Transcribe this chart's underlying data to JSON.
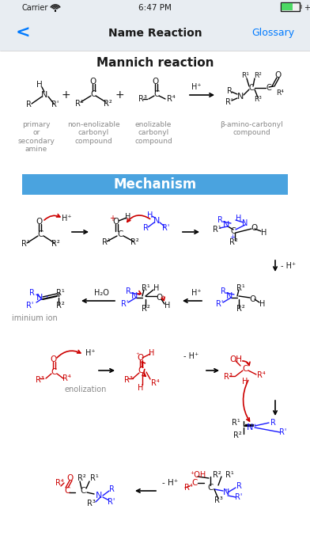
{
  "bg_color": "#ffffff",
  "status_bar_bg": "#e8edf2",
  "nav_bar_bg": "#e8edf2",
  "mechanism_banner_color": "#4aa3df",
  "title": "Mannich reaction",
  "nav_title": "Name Reaction",
  "status_time": "6:47 PM",
  "status_carrier": "Carrier",
  "nav_glossary": "Glossary",
  "mechanism_text": "Mechanism",
  "iminium_label": "iminium ion",
  "label1": "primary\nor\nsecondary\namine",
  "label2": "non-enolizable\ncarbonyl\ncompound",
  "label3": "enolizable\ncarbonyl\ncompound",
  "label4": "β-amino-carbonyl\ncompound",
  "fig_width": 3.92,
  "fig_height": 6.96,
  "dpi": 100,
  "blue": "#007AFF",
  "red": "#cc0000",
  "dark_blue": "#1a1aff",
  "black": "#1a1a1a",
  "gray": "#888888",
  "light_gray": "#c8c8c8"
}
